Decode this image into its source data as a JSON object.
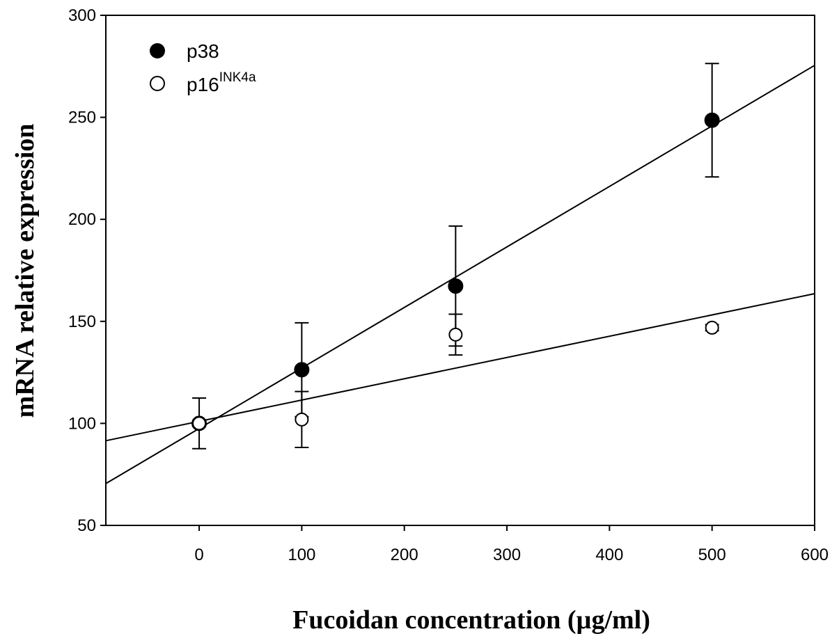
{
  "chart_data": {
    "type": "scatter",
    "title": "",
    "xlabel": "Fucoidan concentration  (µg/ml)",
    "ylabel": "mRNA relative expression",
    "xlim": [
      -91,
      600
    ],
    "ylim": [
      50,
      300
    ],
    "xticks": [
      0,
      100,
      200,
      300,
      400,
      500,
      600
    ],
    "yticks": [
      50,
      100,
      150,
      200,
      250,
      300
    ],
    "grid": false,
    "legend_position": "top-left",
    "series": [
      {
        "name": "p38",
        "sup": "",
        "marker": "filled-circle",
        "x": [
          0,
          100,
          250,
          500
        ],
        "y": [
          100,
          126.3,
          167.3,
          248.6
        ],
        "err": [
          1.5,
          23,
          29.4,
          27.8
        ],
        "fit": {
          "slope": 0.2966,
          "intercept": 97.5
        }
      },
      {
        "name": "p16",
        "sup": "INK4a",
        "marker": "open-circle",
        "x": [
          0,
          100,
          250,
          500
        ],
        "y": [
          100,
          101.9,
          143.5,
          146.9
        ],
        "err": [
          12.4,
          13.7,
          10,
          1.5
        ],
        "fit": {
          "slope": 0.1043,
          "intercept": 101
        }
      }
    ]
  }
}
